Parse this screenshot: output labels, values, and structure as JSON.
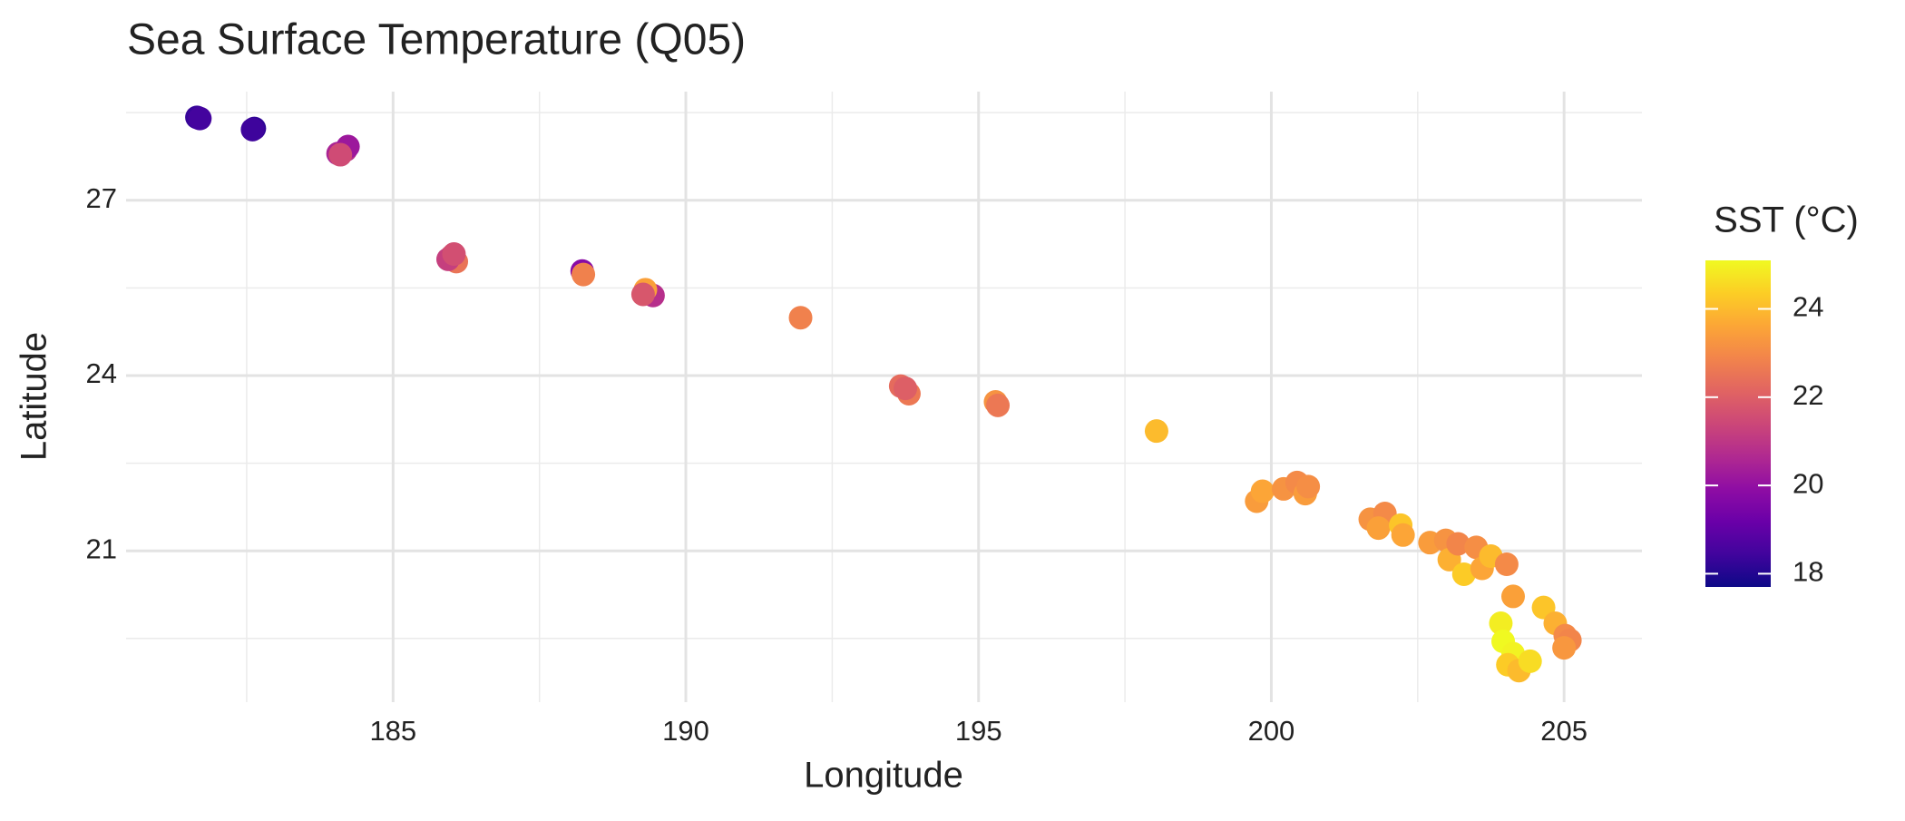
{
  "chart_data": {
    "type": "scatter",
    "title": "Sea Surface Temperature (Q05)",
    "xlabel": "Longitude",
    "ylabel": "Latitude",
    "x": [
      181.65,
      181.7,
      182.63,
      182.6,
      184.06,
      184.19,
      184.23,
      184.1,
      186.0,
      186.08,
      185.94,
      186.04,
      188.23,
      188.25,
      189.33,
      189.44,
      189.31,
      189.27,
      191.96,
      193.67,
      193.81,
      193.75,
      195.29,
      195.33,
      198.04,
      199.75,
      199.85,
      200.21,
      200.44,
      200.58,
      200.63,
      201.69,
      201.94,
      201.83,
      202.21,
      202.25,
      202.71,
      202.98,
      203.04,
      203.29,
      203.19,
      203.5,
      203.6,
      203.75,
      204.02,
      204.13,
      204.65,
      203.92,
      203.96,
      204.13,
      204.04,
      204.23,
      204.42,
      204.85,
      205.02,
      205.1,
      205.0
    ],
    "y": [
      28.42,
      28.4,
      28.23,
      28.21,
      27.8,
      27.86,
      27.92,
      27.78,
      26.04,
      25.95,
      25.99,
      26.08,
      25.79,
      25.73,
      25.41,
      25.37,
      25.47,
      25.39,
      24.99,
      23.82,
      23.69,
      23.78,
      23.55,
      23.49,
      23.05,
      21.85,
      22.02,
      22.06,
      22.17,
      21.98,
      22.1,
      21.54,
      21.64,
      21.39,
      21.44,
      21.27,
      21.14,
      21.18,
      20.85,
      20.6,
      21.12,
      21.06,
      20.7,
      20.91,
      20.77,
      20.22,
      20.03,
      19.76,
      19.45,
      19.24,
      19.05,
      18.95,
      19.11,
      19.76,
      19.55,
      19.47,
      19.34
    ],
    "color_values": [
      18.3,
      18.5,
      18.2,
      18.4,
      20.5,
      20.8,
      20.2,
      21.5,
      21.8,
      22.5,
      21.2,
      21.6,
      19.8,
      22.8,
      21.3,
      20.8,
      23.5,
      21.8,
      22.8,
      22.3,
      22.6,
      22.0,
      23.2,
      22.6,
      24.0,
      23.4,
      23.6,
      23.2,
      23.0,
      23.4,
      23.1,
      23.2,
      23.0,
      23.5,
      24.2,
      23.6,
      23.4,
      23.2,
      23.8,
      24.3,
      22.9,
      23.1,
      23.6,
      24.0,
      23.0,
      23.5,
      24.2,
      24.9,
      25.1,
      25.0,
      24.3,
      24.0,
      24.6,
      23.8,
      23.0,
      22.9,
      23.3
    ],
    "color_label": "SST (°C)",
    "colormap": "plasma",
    "clim": [
      17.7,
      25.1
    ],
    "cticks": [
      18,
      20,
      22,
      24
    ],
    "xlim": [
      180.44,
      206.33
    ],
    "ylim": [
      18.41,
      28.86
    ],
    "xticks": [
      185,
      190,
      195,
      200,
      205
    ],
    "yticks": [
      21,
      24,
      27
    ],
    "xminor": [
      182.5,
      187.5,
      192.5,
      197.5,
      202.5
    ],
    "yminor": [
      19.5,
      22.5,
      25.5,
      28.5
    ],
    "grid": true
  }
}
